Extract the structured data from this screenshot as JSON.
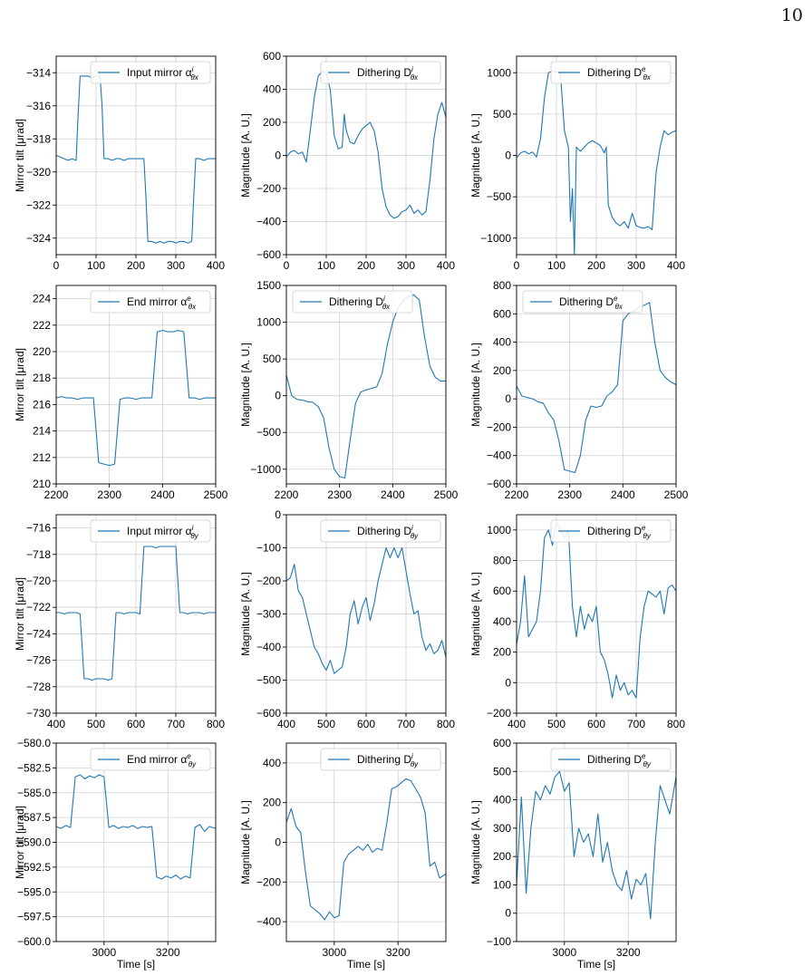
{
  "page_number": "10",
  "colors": {
    "line": "#1f77b4",
    "grid": "#d0d0d0",
    "axis": "#000000"
  },
  "chart_data": [
    {
      "type": "line",
      "row": 0,
      "col": 0,
      "xlim": [
        0,
        400
      ],
      "ylim": [
        -325,
        -313
      ],
      "xticks": [
        0,
        100,
        200,
        300,
        400
      ],
      "yticks": [
        -324,
        -322,
        -320,
        -318,
        -316,
        -314
      ],
      "ylabel": "Mirror tilt [μrad]",
      "xlabel": "",
      "legend": {
        "base": "Input mirror α",
        "sup": "i",
        "sub": "θx",
        "loc": "upper-right"
      },
      "x": [
        0,
        10,
        20,
        30,
        40,
        50,
        55,
        60,
        70,
        80,
        90,
        100,
        110,
        115,
        120,
        130,
        140,
        150,
        160,
        170,
        180,
        190,
        200,
        210,
        220,
        225,
        230,
        240,
        250,
        260,
        270,
        280,
        290,
        300,
        310,
        320,
        330,
        340,
        345,
        350,
        360,
        370,
        380,
        390,
        400
      ],
      "y": [
        -319.0,
        -319.1,
        -319.2,
        -319.3,
        -319.2,
        -319.3,
        -316.5,
        -314.2,
        -314.2,
        -314.2,
        -314.3,
        -314.2,
        -314.2,
        -316.0,
        -319.2,
        -319.2,
        -319.3,
        -319.2,
        -319.2,
        -319.3,
        -319.2,
        -319.2,
        -319.2,
        -319.2,
        -319.2,
        -321.5,
        -324.2,
        -324.2,
        -324.3,
        -324.2,
        -324.3,
        -324.2,
        -324.2,
        -324.3,
        -324.2,
        -324.2,
        -324.3,
        -324.2,
        -321.5,
        -319.2,
        -319.2,
        -319.3,
        -319.2,
        -319.2,
        -319.2
      ]
    },
    {
      "type": "line",
      "row": 0,
      "col": 1,
      "xlim": [
        0,
        400
      ],
      "ylim": [
        -600,
        600
      ],
      "xticks": [
        0,
        100,
        200,
        300,
        400
      ],
      "yticks": [
        -600,
        -400,
        -200,
        0,
        200,
        400,
        600
      ],
      "ylabel": "Magnitude [A. U.]",
      "xlabel": "",
      "legend": {
        "base": "Dithering D",
        "sup": "i",
        "sub": "θx",
        "loc": "upper-right"
      },
      "x": [
        0,
        10,
        20,
        30,
        40,
        50,
        60,
        70,
        80,
        90,
        100,
        110,
        120,
        130,
        140,
        145,
        150,
        160,
        170,
        180,
        190,
        200,
        210,
        220,
        230,
        240,
        250,
        260,
        270,
        280,
        290,
        300,
        310,
        320,
        330,
        340,
        350,
        360,
        370,
        380,
        390,
        400
      ],
      "y": [
        -10,
        20,
        30,
        10,
        20,
        -40,
        150,
        350,
        480,
        510,
        500,
        400,
        120,
        40,
        50,
        250,
        150,
        80,
        70,
        120,
        160,
        180,
        200,
        150,
        20,
        -200,
        -310,
        -360,
        -380,
        -370,
        -340,
        -330,
        -300,
        -350,
        -330,
        -360,
        -340,
        -150,
        100,
        250,
        320,
        230
      ]
    },
    {
      "type": "line",
      "row": 0,
      "col": 2,
      "xlim": [
        0,
        400
      ],
      "ylim": [
        -1200,
        1200
      ],
      "xticks": [
        0,
        100,
        200,
        300,
        400
      ],
      "yticks": [
        -1000,
        -500,
        0,
        500,
        1000
      ],
      "ylabel": "Magnitude [A. U.]",
      "xlabel": "",
      "legend": {
        "base": "Dithering D",
        "sup": "e",
        "sub": "θx",
        "loc": "upper-right"
      },
      "x": [
        0,
        10,
        20,
        30,
        40,
        50,
        60,
        70,
        80,
        90,
        100,
        110,
        120,
        130,
        135,
        140,
        145,
        150,
        160,
        170,
        180,
        190,
        200,
        210,
        220,
        225,
        230,
        240,
        250,
        260,
        270,
        280,
        290,
        300,
        310,
        320,
        330,
        340,
        350,
        360,
        370,
        380,
        390,
        400
      ],
      "y": [
        -30,
        30,
        50,
        20,
        40,
        -20,
        200,
        700,
        1000,
        1020,
        1010,
        1000,
        300,
        100,
        -800,
        -400,
        -1200,
        100,
        50,
        100,
        150,
        180,
        150,
        120,
        30,
        100,
        -600,
        -750,
        -820,
        -850,
        -800,
        -880,
        -700,
        -850,
        -870,
        -880,
        -860,
        -900,
        -200,
        100,
        300,
        250,
        280,
        300
      ]
    },
    {
      "type": "line",
      "row": 1,
      "col": 0,
      "xlim": [
        2200,
        2500
      ],
      "ylim": [
        210,
        225
      ],
      "xticks": [
        2200,
        2300,
        2400,
        2500
      ],
      "yticks": [
        210,
        212,
        214,
        216,
        218,
        220,
        222,
        224
      ],
      "ylabel": "Mirror tilt [μrad]",
      "xlabel": "",
      "legend": {
        "base": "End mirror α",
        "sup": "e",
        "sub": "θx",
        "loc": "upper-right"
      },
      "x": [
        2200,
        2210,
        2220,
        2230,
        2240,
        2250,
        2260,
        2270,
        2280,
        2290,
        2300,
        2310,
        2320,
        2330,
        2340,
        2350,
        2360,
        2370,
        2380,
        2390,
        2400,
        2410,
        2420,
        2430,
        2440,
        2450,
        2460,
        2470,
        2480,
        2490,
        2500
      ],
      "y": [
        216.5,
        216.6,
        216.5,
        216.5,
        216.4,
        216.5,
        216.5,
        216.5,
        211.6,
        211.5,
        211.4,
        211.5,
        216.4,
        216.5,
        216.5,
        216.4,
        216.5,
        216.5,
        216.5,
        221.5,
        221.6,
        221.5,
        221.5,
        221.6,
        221.5,
        216.5,
        216.5,
        216.4,
        216.5,
        216.5,
        216.5
      ]
    },
    {
      "type": "line",
      "row": 1,
      "col": 1,
      "xlim": [
        2200,
        2500
      ],
      "ylim": [
        -1200,
        1500
      ],
      "xticks": [
        2200,
        2300,
        2400,
        2500
      ],
      "yticks": [
        -1000,
        -500,
        0,
        500,
        1000,
        1500
      ],
      "ylabel": "Magnitude [A. U.]",
      "xlabel": "",
      "legend": {
        "base": "Dithering D",
        "sup": "i",
        "sub": "θx",
        "loc": "upper-left"
      },
      "x": [
        2200,
        2210,
        2220,
        2230,
        2240,
        2250,
        2260,
        2270,
        2280,
        2290,
        2300,
        2310,
        2320,
        2330,
        2340,
        2350,
        2360,
        2370,
        2380,
        2390,
        2400,
        2410,
        2420,
        2430,
        2440,
        2450,
        2460,
        2470,
        2480,
        2490,
        2500
      ],
      "y": [
        280,
        0,
        -50,
        -60,
        -80,
        -90,
        -150,
        -300,
        -700,
        -1000,
        -1100,
        -1120,
        -600,
        -100,
        50,
        80,
        100,
        120,
        300,
        700,
        1000,
        1200,
        1300,
        1350,
        1370,
        1300,
        800,
        400,
        250,
        200,
        200
      ]
    },
    {
      "type": "line",
      "row": 1,
      "col": 2,
      "xlim": [
        2200,
        2500
      ],
      "ylim": [
        -600,
        800
      ],
      "xticks": [
        2200,
        2300,
        2400,
        2500
      ],
      "yticks": [
        -600,
        -400,
        -200,
        0,
        200,
        400,
        600,
        800
      ],
      "ylabel": "Magnitude [A. U.]",
      "xlabel": "",
      "legend": {
        "base": "Dithering D",
        "sup": "e",
        "sub": "θx",
        "loc": "upper-left"
      },
      "x": [
        2200,
        2210,
        2220,
        2230,
        2240,
        2250,
        2260,
        2270,
        2280,
        2290,
        2300,
        2310,
        2320,
        2330,
        2340,
        2350,
        2360,
        2370,
        2380,
        2390,
        2400,
        2410,
        2420,
        2430,
        2440,
        2450,
        2460,
        2470,
        2480,
        2490,
        2500
      ],
      "y": [
        90,
        20,
        10,
        0,
        -20,
        -30,
        -100,
        -150,
        -300,
        -500,
        -510,
        -520,
        -400,
        -150,
        -50,
        -60,
        -50,
        20,
        50,
        100,
        550,
        600,
        620,
        650,
        660,
        680,
        400,
        200,
        150,
        120,
        100
      ]
    },
    {
      "type": "line",
      "row": 2,
      "col": 0,
      "xlim": [
        400,
        800
      ],
      "ylim": [
        -730,
        -715
      ],
      "xticks": [
        400,
        500,
        600,
        700,
        800
      ],
      "yticks": [
        -730,
        -728,
        -726,
        -724,
        -722,
        -720,
        -718,
        -716
      ],
      "ylabel": "Mirror tilt [μrad]",
      "xlabel": "",
      "legend": {
        "base": "Input mirror α",
        "sup": "i",
        "sub": "θy",
        "loc": "upper-right"
      },
      "x": [
        400,
        410,
        420,
        430,
        440,
        450,
        460,
        470,
        480,
        490,
        500,
        510,
        520,
        530,
        540,
        550,
        560,
        570,
        580,
        590,
        600,
        610,
        620,
        630,
        640,
        650,
        660,
        670,
        680,
        690,
        700,
        710,
        720,
        730,
        740,
        750,
        760,
        770,
        780,
        790,
        800
      ],
      "y": [
        -722.4,
        -722.4,
        -722.5,
        -722.4,
        -722.4,
        -722.4,
        -722.5,
        -727.4,
        -727.4,
        -727.5,
        -727.4,
        -727.4,
        -727.4,
        -727.5,
        -727.4,
        -722.4,
        -722.4,
        -722.5,
        -722.4,
        -722.4,
        -722.4,
        -722.5,
        -717.4,
        -717.4,
        -717.4,
        -717.5,
        -717.4,
        -717.4,
        -717.4,
        -717.4,
        -717.4,
        -722.4,
        -722.4,
        -722.5,
        -722.4,
        -722.4,
        -722.4,
        -722.5,
        -722.4,
        -722.4,
        -722.4
      ]
    },
    {
      "type": "line",
      "row": 2,
      "col": 1,
      "xlim": [
        400,
        800
      ],
      "ylim": [
        -600,
        0
      ],
      "xticks": [
        400,
        500,
        600,
        700,
        800
      ],
      "yticks": [
        -600,
        -500,
        -400,
        -300,
        -200,
        -100,
        0
      ],
      "ylabel": "Magnitude [A. U.]",
      "xlabel": "",
      "legend": {
        "base": "Dithering D",
        "sup": "i",
        "sub": "θy",
        "loc": "upper-right"
      },
      "x": [
        400,
        410,
        420,
        430,
        440,
        450,
        460,
        470,
        480,
        490,
        500,
        510,
        520,
        530,
        540,
        550,
        560,
        570,
        580,
        590,
        600,
        610,
        620,
        630,
        640,
        650,
        660,
        670,
        680,
        690,
        700,
        710,
        720,
        730,
        740,
        750,
        760,
        770,
        780,
        790,
        800
      ],
      "y": [
        -200,
        -190,
        -150,
        -230,
        -250,
        -300,
        -350,
        -400,
        -420,
        -450,
        -470,
        -440,
        -480,
        -470,
        -460,
        -400,
        -300,
        -260,
        -330,
        -280,
        -250,
        -320,
        -270,
        -200,
        -150,
        -100,
        -130,
        -100,
        -130,
        -100,
        -170,
        -240,
        -300,
        -290,
        -370,
        -410,
        -390,
        -420,
        -410,
        -380,
        -430
      ]
    },
    {
      "type": "line",
      "row": 2,
      "col": 2,
      "xlim": [
        400,
        800
      ],
      "ylim": [
        -200,
        1100
      ],
      "xticks": [
        400,
        500,
        600,
        700,
        800
      ],
      "yticks": [
        -200,
        0,
        200,
        400,
        600,
        800,
        1000
      ],
      "ylabel": "Magnitude [A. U.]",
      "xlabel": "",
      "legend": {
        "base": "Dithering D",
        "sup": "e",
        "sub": "θy",
        "loc": "upper-right"
      },
      "x": [
        400,
        410,
        420,
        430,
        440,
        450,
        460,
        470,
        480,
        490,
        500,
        510,
        520,
        530,
        540,
        550,
        560,
        570,
        580,
        590,
        600,
        610,
        620,
        630,
        640,
        650,
        660,
        670,
        680,
        690,
        700,
        710,
        720,
        730,
        740,
        750,
        760,
        770,
        780,
        790,
        800
      ],
      "y": [
        250,
        400,
        700,
        300,
        350,
        400,
        600,
        950,
        1000,
        900,
        1050,
        1000,
        950,
        1000,
        500,
        300,
        500,
        350,
        450,
        400,
        500,
        200,
        150,
        50,
        -100,
        50,
        -50,
        0,
        -80,
        -50,
        -100,
        300,
        500,
        600,
        580,
        560,
        600,
        450,
        620,
        640,
        600
      ]
    },
    {
      "type": "line",
      "row": 3,
      "col": 0,
      "xlim": [
        2850,
        3350
      ],
      "ylim": [
        -600,
        -580
      ],
      "xticks": [
        3000,
        3200
      ],
      "yticks": [
        -600.0,
        -597.5,
        -595.0,
        -592.5,
        -590.0,
        -587.5,
        -585.0,
        -582.5,
        -580.0
      ],
      "ylabel": "Mirror tilt [μrad]",
      "xlabel": "Time [s]",
      "legend": {
        "base": "End mirror α",
        "sup": "e",
        "sub": "θy",
        "loc": "upper-right"
      },
      "x": [
        2850,
        2865,
        2880,
        2895,
        2910,
        2925,
        2940,
        2955,
        2970,
        2985,
        3000,
        3015,
        3030,
        3045,
        3060,
        3075,
        3090,
        3105,
        3120,
        3135,
        3150,
        3165,
        3180,
        3195,
        3210,
        3225,
        3240,
        3255,
        3270,
        3285,
        3300,
        3315,
        3330,
        3350
      ],
      "y": [
        -588.4,
        -588.6,
        -588.3,
        -588.5,
        -583.4,
        -583.2,
        -583.6,
        -583.3,
        -583.5,
        -583.2,
        -583.4,
        -588.5,
        -588.3,
        -588.6,
        -588.4,
        -588.5,
        -588.3,
        -588.6,
        -588.4,
        -588.5,
        -588.4,
        -593.5,
        -593.7,
        -593.4,
        -593.6,
        -593.3,
        -593.7,
        -593.4,
        -593.6,
        -588.5,
        -588.2,
        -588.9,
        -588.4,
        -588.6
      ]
    },
    {
      "type": "line",
      "row": 3,
      "col": 1,
      "xlim": [
        2850,
        3350
      ],
      "ylim": [
        -500,
        500
      ],
      "xticks": [
        3000,
        3200
      ],
      "yticks": [
        -400,
        -200,
        0,
        200,
        400
      ],
      "ylabel": "Magnitude [A. U.]",
      "xlabel": "Time [s]",
      "legend": {
        "base": "Dithering D",
        "sup": "i",
        "sub": "θy",
        "loc": "upper-right"
      },
      "x": [
        2850,
        2865,
        2880,
        2895,
        2910,
        2925,
        2940,
        2955,
        2970,
        2985,
        3000,
        3015,
        3030,
        3045,
        3060,
        3075,
        3090,
        3105,
        3120,
        3135,
        3150,
        3165,
        3180,
        3195,
        3210,
        3225,
        3240,
        3255,
        3270,
        3285,
        3300,
        3315,
        3330,
        3350
      ],
      "y": [
        100,
        170,
        80,
        50,
        -150,
        -320,
        -340,
        -360,
        -390,
        -350,
        -380,
        -370,
        -100,
        -60,
        -40,
        -20,
        -40,
        -10,
        -50,
        -30,
        -40,
        100,
        270,
        280,
        300,
        320,
        310,
        270,
        230,
        150,
        -120,
        -100,
        -180,
        -160
      ]
    },
    {
      "type": "line",
      "row": 3,
      "col": 2,
      "xlim": [
        2850,
        3350
      ],
      "ylim": [
        -100,
        600
      ],
      "xticks": [
        3000,
        3200
      ],
      "yticks": [
        -100,
        0,
        100,
        200,
        300,
        400,
        500,
        600
      ],
      "ylabel": "Magnitude [A. U.]",
      "xlabel": "Time [s]",
      "legend": {
        "base": "Dithering D",
        "sup": "e",
        "sub": "θy",
        "loc": "upper-right"
      },
      "x": [
        2850,
        2865,
        2880,
        2895,
        2910,
        2925,
        2940,
        2955,
        2970,
        2985,
        3000,
        3015,
        3030,
        3045,
        3060,
        3075,
        3090,
        3105,
        3120,
        3135,
        3150,
        3165,
        3180,
        3195,
        3210,
        3225,
        3240,
        3255,
        3270,
        3285,
        3300,
        3315,
        3330,
        3350
      ],
      "y": [
        100,
        410,
        70,
        300,
        430,
        400,
        450,
        420,
        480,
        500,
        430,
        460,
        200,
        300,
        250,
        280,
        200,
        350,
        180,
        250,
        150,
        100,
        80,
        150,
        50,
        120,
        100,
        140,
        -20,
        250,
        450,
        400,
        350,
        480
      ]
    }
  ]
}
